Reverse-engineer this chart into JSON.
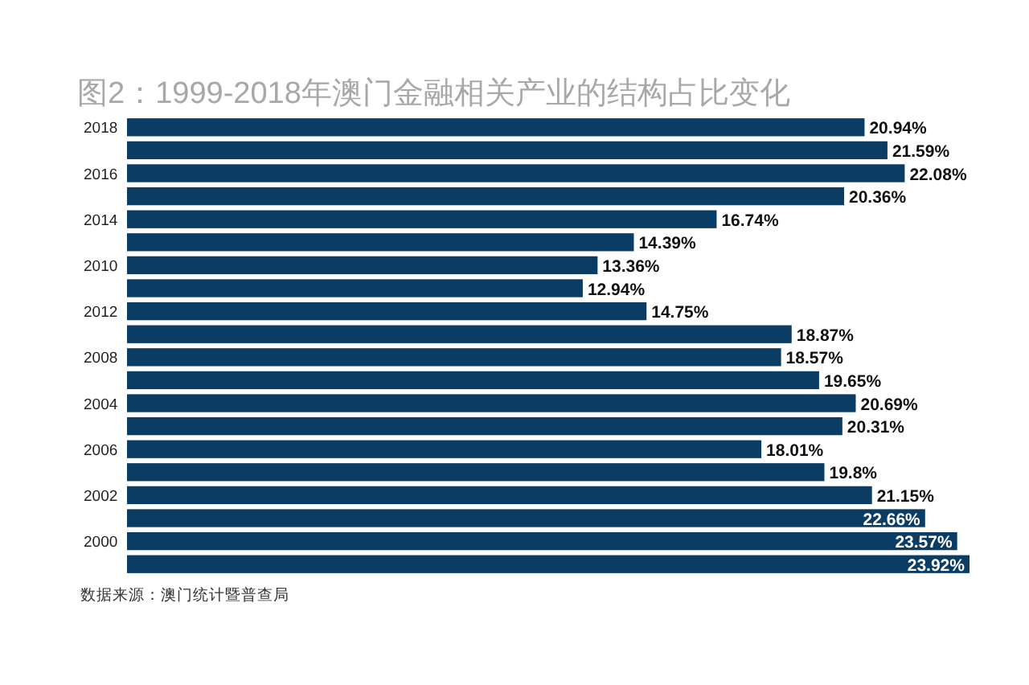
{
  "chart_data": {
    "type": "bar",
    "orientation": "horizontal",
    "title": "图2：1999-2018年澳门金融相关产业的结构占比变化",
    "categories": [
      "2018",
      null,
      "2016",
      null,
      "2014",
      null,
      "2010",
      null,
      "2012",
      null,
      "2008",
      null,
      "2004",
      null,
      "2006",
      null,
      "2002",
      null,
      "2000",
      null
    ],
    "values": [
      20.94,
      21.59,
      22.08,
      20.36,
      16.74,
      14.39,
      13.36,
      12.94,
      14.75,
      18.87,
      18.57,
      19.65,
      20.69,
      20.31,
      18.01,
      19.8,
      21.15,
      22.66,
      23.57,
      23.92
    ],
    "value_labels": [
      "20.94%",
      "21.59%",
      "22.08%",
      "20.36%",
      "16.74%",
      "14.39%",
      "13.36%",
      "12.94%",
      "14.75%",
      "18.87%",
      "18.57%",
      "19.65%",
      "20.69%",
      "20.31%",
      "18.01%",
      "19.8%",
      "21.15%",
      "22.66%",
      "23.57%",
      "23.92%"
    ],
    "color": "#0b3c64",
    "annotations": [
      "数据来源：澳门统计暨普查局"
    ]
  }
}
